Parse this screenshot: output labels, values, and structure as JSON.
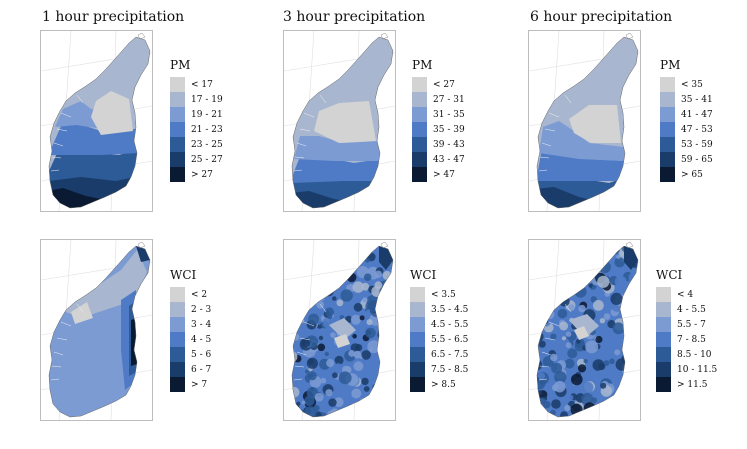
{
  "column_titles": [
    "1 hour precipitation",
    "3 hour precipitation",
    "6 hour precipitation"
  ],
  "colors": [
    "#d3d3d3",
    "#a8b7cf",
    "#7c9bd3",
    "#4f7bc6",
    "#2d5b97",
    "#1a3c6a",
    "#0a1a33"
  ],
  "panels": [
    {
      "legend_title": "PM",
      "legend_labels": [
        "< 17",
        "17 - 19",
        "19 - 21",
        "21 - 23",
        "23 - 25",
        "25 - 27",
        "> 27"
      ]
    },
    {
      "legend_title": "PM",
      "legend_labels": [
        "< 27",
        "27 - 31",
        "31 - 35",
        "35 - 39",
        "39 - 43",
        "43 - 47",
        "> 47"
      ]
    },
    {
      "legend_title": "PM",
      "legend_labels": [
        "< 35",
        "35 - 41",
        "41 - 47",
        "47 - 53",
        "53 - 59",
        "59 - 65",
        "> 65"
      ]
    },
    {
      "legend_title": "WCI",
      "legend_labels": [
        "< 2",
        "2 - 3",
        "3 - 4",
        "4 - 5",
        "5 - 6",
        "6 - 7",
        "> 7"
      ]
    },
    {
      "legend_title": "WCI",
      "legend_labels": [
        "< 3.5",
        "3.5 - 4.5",
        "4.5 - 5.5",
        "5.5 - 6.5",
        "6.5 - 7.5",
        "7.5 - 8.5",
        "> 8.5"
      ]
    },
    {
      "legend_title": "WCI",
      "legend_labels": [
        "< 4",
        "4 - 5.5",
        "5.5 - 7",
        "7 - 8.5",
        "8.5 - 10",
        "10 - 11.5",
        "> 11.5"
      ]
    }
  ]
}
